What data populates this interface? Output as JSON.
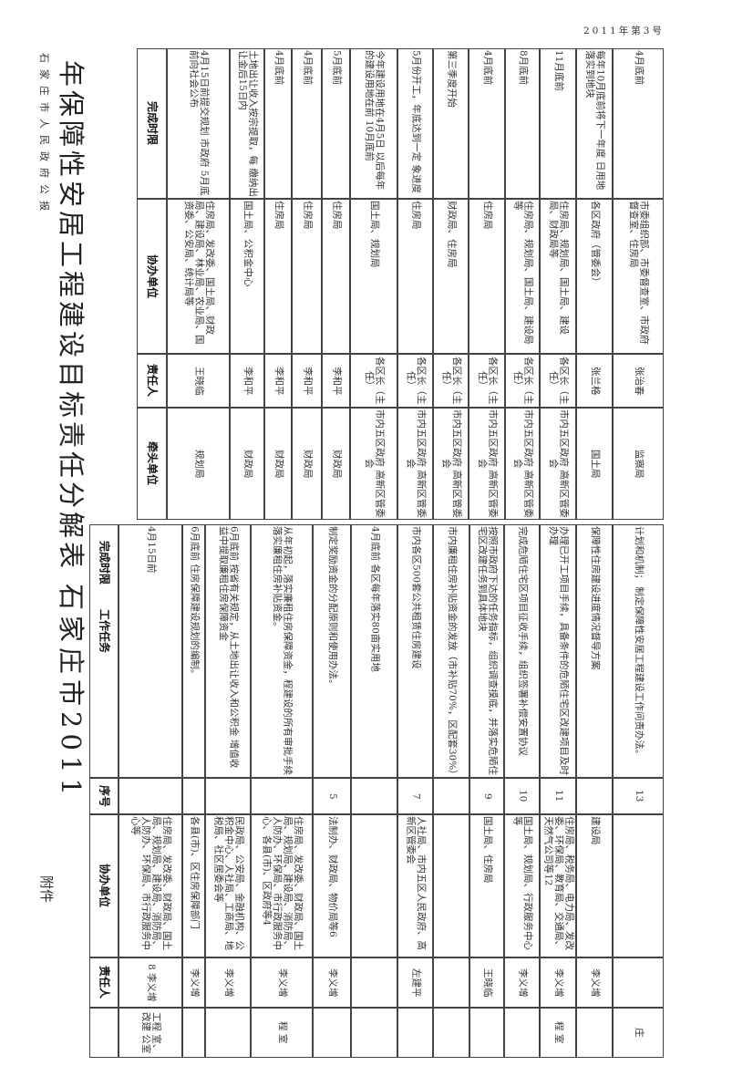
{
  "header": {
    "gazette": "石家庄市人民政府公报",
    "issue": "2011年第3号",
    "attachment": "附件",
    "title_part1": "石家庄市2011",
    "title_part2": "年保障性安居工程建设目标责任分解表"
  },
  "right_table": {
    "columns": {
      "deadline": "完成时限",
      "assist": "协办单位",
      "person": "责任人",
      "lead": "牵头单位"
    },
    "rows": [
      {
        "deadline": "4月15日前提交规划 市政府 5月底前向社会公布",
        "assist": "住房局、发改委、国土局、财政局、建设局、林业局、农业局、国资委、公安局、统计局等",
        "person": "王晓临",
        "lead": "规划局"
      },
      {
        "deadline": "土地出让收入按宗提取，每 缴纳出让金后15日内",
        "assist": "国土局、公积金中心",
        "person": "李和平",
        "lead": "财政局"
      },
      {
        "deadline": "4月底前",
        "assist": "住房局",
        "person": "李和平",
        "lead": "财政局"
      },
      {
        "deadline": "4月底前",
        "assist": "住房局",
        "person": "李和平",
        "lead": "财政局"
      },
      {
        "deadline": "5月底前",
        "assist": "住房局",
        "person": "李和平",
        "lead": "财政局"
      },
      {
        "deadline": "今年建设用地在4月5日 以后每年的建设用地在前 10月底前",
        "assist": "国土局、规划局",
        "person": "各区长（主任）",
        "lead": "市内五区政府 高新区管委会"
      },
      {
        "deadline": "5月份开工，年底达到一定 象进度",
        "assist": "住房局",
        "person": "各区长（主任）",
        "lead": "市内五区政府 高新区管委会"
      },
      {
        "deadline": "第三季度开始",
        "assist": "财政局、住房局",
        "person": "各区长（主任）",
        "lead": "市内五区政府 高新区管委会"
      },
      {
        "deadline": "4月底前",
        "assist": "住房局",
        "person": "各区长（主任）",
        "lead": "市内五区政府 高新区管委会"
      },
      {
        "deadline": "8月底前",
        "assist": "住房局、规划局、国土局、建设局等",
        "person": "各区长（主任）",
        "lead": "市内五区政府 高新区管委会"
      },
      {
        "deadline": "11月底前",
        "assist": "住房局、规划局、国土局、建设局、财政局等",
        "person": "各区长（主任）",
        "lead": "市内五区政府 高新区管委会"
      },
      {
        "deadline": "每年10月底前将下一年度 日用地落实到地块",
        "assist": "各区政府（管委会）",
        "person": "张兰格",
        "lead": "国土局"
      },
      {
        "deadline": "4月底前",
        "assist": "市委组织部、市委督查室、市政府督查室、住房局",
        "person": "张治春",
        "lead": "监察局"
      }
    ]
  },
  "left_table": {
    "columns": {
      "deadline": "完成时限",
      "task": "工作任务",
      "seq": "序号",
      "assist": "协办单位",
      "person": "责任人"
    },
    "rows": [
      {
        "task": "4月15日前",
        "seq": "",
        "assist": "住房局、发改委、财政局、国土局、规划局、建设局、消防局、人防办、环保局、市行政服务中心等",
        "person": "8 李义增",
        "dept": "工程 室、改建 公室"
      },
      {
        "task": "6月底前 住房保障建设规划的编制。",
        "seq": "",
        "assist": "各县(市)、区住房保障部门",
        "person": "李义增",
        "dept": ""
      },
      {
        "task": "6月底前 按省有关规定，从土地出让收入和公积金 增值收益中提取廉租住房保障资金",
        "seq": "",
        "assist": "民政局、公安局、金融机构、公积金中心、人社局、工商局、地税局、社区居委会等",
        "person": "李义增",
        "dept": ""
      },
      {
        "task": "从年初起，落实廉租住房保障资金，程建设的所有审批手续 落实廉租住房补贴资金。",
        "seq": "",
        "assist": "住房局、发改委、财政局、国土局、规划局、建设局、消防局、人防办、环保局、市行政服务中心、各县(市)、区政府等4",
        "person": "李义增",
        "dept": "程 室"
      },
      {
        "task": "制定奖励资金的分配原则和使用办法。",
        "seq": "5",
        "assist": "法制办、财政局、物价局等6",
        "person": "李义增",
        "dept": ""
      },
      {
        "task": "4月底前 各区每年落实80亩实用地",
        "seq": "",
        "assist": "",
        "person": "",
        "dept": ""
      },
      {
        "task": "市内各区500套公共租赁住房建设",
        "seq": "7",
        "assist": "人社局、市内五区人民政府、高新区管委会",
        "person": "左建平",
        "dept": ""
      },
      {
        "task": "市内廉租住房补贴资金的发放（市补贴70%，区配套30%）",
        "seq": "",
        "assist": "",
        "person": "",
        "dept": ""
      },
      {
        "task": "按照市政府下达的任务指标，组织调查摸底，并落实危陋住宅区改建任务到具体地块",
        "seq": "9",
        "assist": "国土局、住房局",
        "person": "王晓临",
        "dept": ""
      },
      {
        "task": "完成危陋住宅区项目征收手续，组织签署补偿安置协议",
        "seq": "10",
        "assist": "国土局、规划局、行政服务中心等",
        "person": "李义增",
        "dept": ""
      },
      {
        "task": "办理已开工项目手续，具备条件的危陋住宅区改建项目及时办理",
        "seq": "11",
        "assist": "住房局、税务局、电力局、发改委、环保局、教育局、交通局、天然气公司等12",
        "person": "李义增",
        "dept": "程 室"
      },
      {
        "task": "保障性住房建设进度情况督导方案",
        "seq": "",
        "assist": "建设局",
        "person": "李义增",
        "dept": ""
      },
      {
        "task": "计划和机制； 制定保障性安居工程建设工作问责办法。",
        "seq": "13",
        "assist": "",
        "person": "",
        "dept": "庄"
      }
    ]
  }
}
